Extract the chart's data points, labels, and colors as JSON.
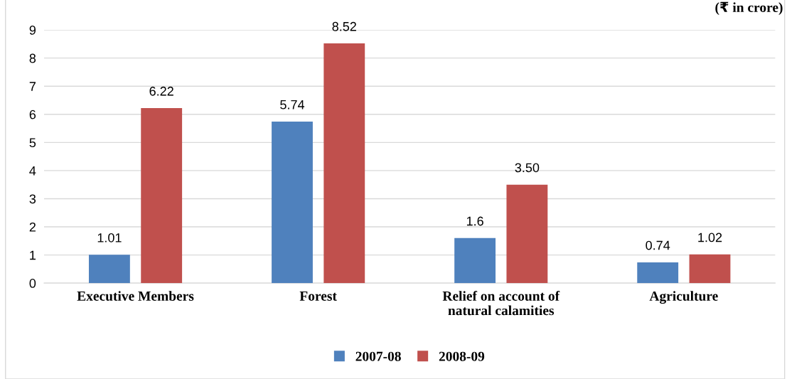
{
  "chart_data": {
    "type": "bar",
    "annotations": [
      "(₹ in crore)"
    ],
    "categories": [
      "Executive Members",
      "Forest",
      "Relief on account of\nnatural calamities",
      "Agriculture"
    ],
    "series": [
      {
        "name": "2007-08",
        "color": "#4f81bd",
        "values": [
          1.01,
          5.74,
          1.6,
          0.74
        ],
        "value_labels": [
          "1.01",
          "5.74",
          "1.6",
          "0.74"
        ]
      },
      {
        "name": "2008-09",
        "color": "#c0504d",
        "values": [
          6.22,
          8.52,
          3.5,
          1.02
        ],
        "value_labels": [
          "6.22",
          "8.52",
          "3.50",
          "1.02"
        ]
      }
    ],
    "ylim": [
      0,
      9
    ],
    "yticks": [
      0,
      1,
      2,
      3,
      4,
      5,
      6,
      7,
      8,
      9
    ],
    "grid": "y",
    "legend": "bottom"
  }
}
